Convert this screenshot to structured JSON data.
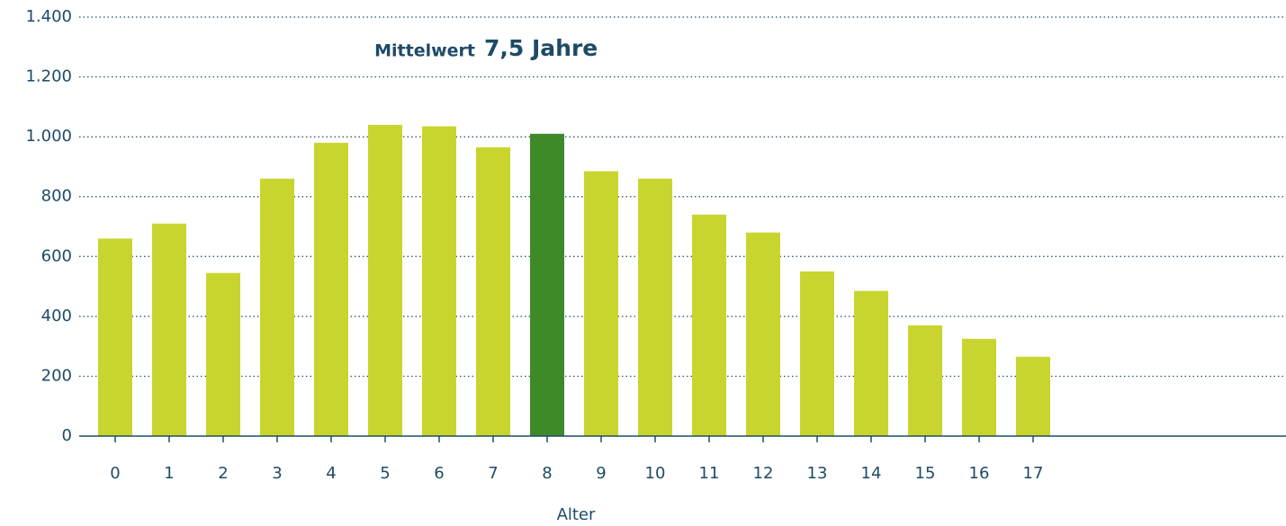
{
  "chart_data": {
    "type": "bar",
    "annotation": {
      "label": "Mittelwert",
      "value": "7,5 Jahre"
    },
    "xlabel": "Alter",
    "categories": [
      "0",
      "1",
      "2",
      "3",
      "4",
      "5",
      "6",
      "7",
      "8",
      "9",
      "10",
      "11",
      "12",
      "13",
      "14",
      "15",
      "16",
      "17"
    ],
    "values": [
      660,
      710,
      545,
      860,
      980,
      1040,
      1035,
      965,
      1010,
      885,
      860,
      740,
      680,
      550,
      485,
      370,
      325,
      265
    ],
    "colors": [
      "#c8d52e",
      "#c8d52e",
      "#c8d52e",
      "#c8d52e",
      "#c8d52e",
      "#c8d52e",
      "#c8d52e",
      "#c8d52e",
      "#3e8a28",
      "#c8d52e",
      "#c8d52e",
      "#c8d52e",
      "#c8d52e",
      "#c8d52e",
      "#c8d52e",
      "#c8d52e",
      "#c8d52e",
      "#c8d52e"
    ],
    "ylim": [
      0,
      1400
    ],
    "yticks": [
      0,
      200,
      400,
      600,
      800,
      {
        "value": 1000,
        "label": "1.000"
      },
      {
        "value": 1200,
        "label": "1.200"
      },
      {
        "value": 1400,
        "label": "1.400"
      }
    ],
    "grid": true
  }
}
